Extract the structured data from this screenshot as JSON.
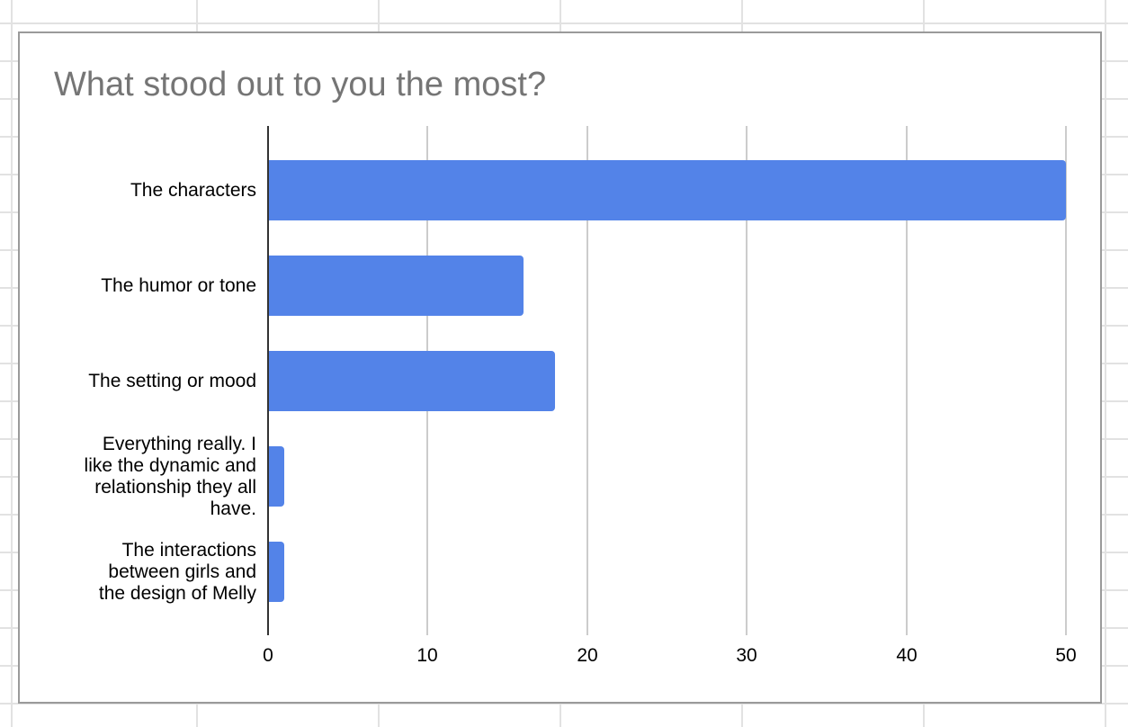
{
  "chart_data": {
    "type": "bar",
    "orientation": "horizontal",
    "title": "What stood out to you the most?",
    "categories": [
      "The characters",
      "The humor or tone",
      "The setting or mood",
      "Everything really. I like the dynamic and relationship they all have.",
      "The interactions between girls and the design of Melly"
    ],
    "category_display": [
      "The characters",
      "The humor or tone",
      "The setting or mood",
      "Everything really. I\nlike the dynamic and\nrelationship they all\nhave.",
      "The interactions\nbetween girls and\nthe design of Melly"
    ],
    "values": [
      50,
      16,
      18,
      1,
      1
    ],
    "xlabel": "",
    "ylabel": "",
    "xlim": [
      0,
      50
    ],
    "x_ticks": [
      "0",
      "10",
      "20",
      "30",
      "40",
      "50"
    ],
    "grid": true,
    "legend": "none",
    "bar_color": "#5383e8"
  }
}
